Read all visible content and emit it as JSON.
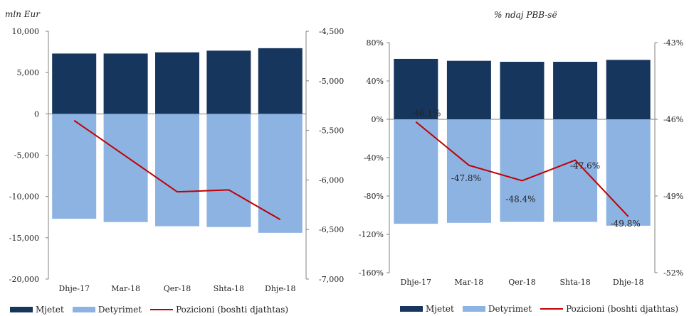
{
  "colors": {
    "assets": "#17365D",
    "liabilities": "#8DB3E2",
    "position": "#C00000",
    "axis": "#808080"
  },
  "legend": {
    "assets": "Mjetet",
    "liabilities": "Detyrimet",
    "position": "Pozicioni (boshti djathtas)"
  },
  "chart_data": [
    {
      "type": "bar",
      "unit_label": "mln Eur",
      "categories": [
        "Dhje-17",
        "Mar-18",
        "Qer-18",
        "Shta-18",
        "Dhje-18"
      ],
      "series": [
        {
          "name": "Mjetet",
          "axis": "left",
          "values": [
            7300,
            7300,
            7450,
            7650,
            7950
          ]
        },
        {
          "name": "Detyrimet",
          "axis": "left",
          "values": [
            -12700,
            -13100,
            -13600,
            -13700,
            -14400
          ]
        },
        {
          "name": "Pozicioni (boshti djathtas)",
          "type": "line",
          "axis": "right",
          "values": [
            -5400,
            -5760,
            -6120,
            -6100,
            -6400
          ]
        }
      ],
      "y_left": {
        "min": -20000,
        "max": 10000,
        "step": 5000,
        "tick_labels": [
          "-20,000",
          "-15,000",
          "-10,000",
          "-5,000",
          "0",
          "5,000",
          "10,000"
        ]
      },
      "y_right": {
        "min": -7000,
        "max": -4500,
        "step": 500,
        "tick_labels": [
          "-7,000",
          "-6,500",
          "-6,000",
          "-5,500",
          "-5,000",
          "-4,500"
        ]
      },
      "legend_position": "bottom"
    },
    {
      "type": "bar",
      "unit_label": "% ndaj PBB-së",
      "categories": [
        "Dhje-17",
        "Mar-18",
        "Qer-18",
        "Shta-18",
        "Dhje-18"
      ],
      "series": [
        {
          "name": "Mjetet",
          "axis": "left",
          "values": [
            63,
            61,
            60,
            60,
            62
          ]
        },
        {
          "name": "Detyrimet",
          "axis": "left",
          "values": [
            -109,
            -108,
            -107,
            -107,
            -111
          ]
        },
        {
          "name": "Pozicioni (boshti djathtas)",
          "type": "line",
          "axis": "right",
          "values": [
            -46.1,
            -47.8,
            -48.4,
            -47.6,
            -49.8
          ],
          "labels": [
            "-46.1%",
            "-47.8%",
            "-48.4%",
            "-47.6%",
            "-49.8%"
          ]
        }
      ],
      "y_left": {
        "min": -160,
        "max": 80,
        "step": 40,
        "tick_labels": [
          "-160%",
          "-120%",
          "-80%",
          "-40%",
          "0%",
          "40%",
          "80%"
        ]
      },
      "y_right": {
        "min": -52,
        "max": -43,
        "step": 3,
        "tick_labels": [
          "-52%",
          "-49%",
          "-46%",
          "-43%"
        ]
      },
      "legend_position": "bottom"
    }
  ]
}
